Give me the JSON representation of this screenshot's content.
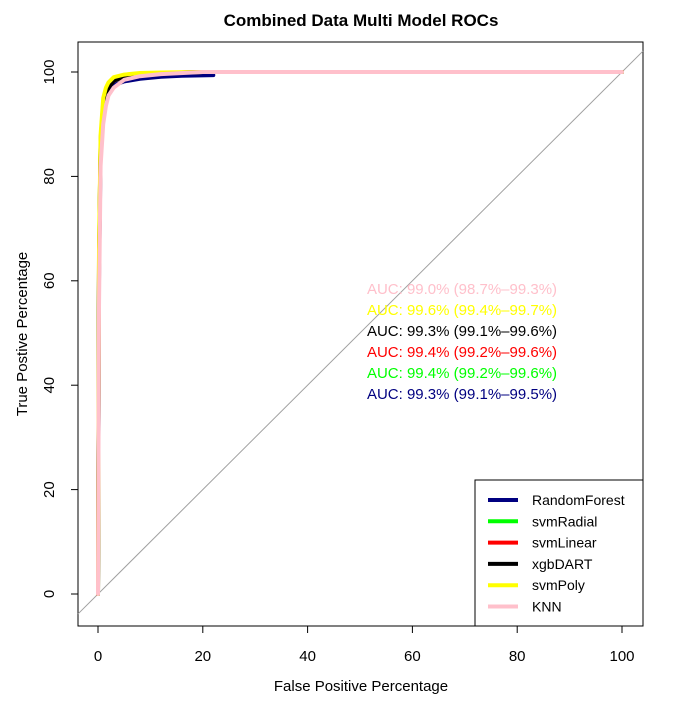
{
  "chart_data": {
    "type": "line",
    "title": "Combined Data Multi Model ROCs",
    "xlabel": "False Positive Percentage",
    "ylabel": "True Postive Percentage",
    "xlim": [
      0,
      100
    ],
    "ylim": [
      0,
      100
    ],
    "x_ticks": [
      "0",
      "20",
      "40",
      "60",
      "80",
      "100"
    ],
    "y_ticks": [
      "0",
      "20",
      "40",
      "60",
      "80",
      "100"
    ],
    "grid": false,
    "legend_position": "bottom-right",
    "reference_line": {
      "x": [
        0,
        100
      ],
      "y": [
        0,
        100
      ],
      "color": "#a0a0a0"
    },
    "series": [
      {
        "name": "RandomForest",
        "color": "#000080",
        "auc_label": "AUC: 99.3% (99.1%–99.5%)",
        "x": [
          0,
          0.2,
          0.5,
          1,
          1.5,
          2,
          3,
          5,
          8,
          12,
          16,
          22
        ],
        "y": [
          0,
          60,
          85,
          92,
          95,
          96.5,
          97.5,
          98.2,
          98.7,
          99.1,
          99.3,
          99.4
        ]
      },
      {
        "name": "svmRadial",
        "color": "#00ff00",
        "auc_label": "AUC: 99.4% (99.2%–99.6%)",
        "x": [
          0,
          0.2,
          0.5,
          1,
          1.5,
          2,
          3,
          5,
          8,
          12,
          20,
          100
        ],
        "y": [
          0,
          65,
          87,
          94,
          96.5,
          97.5,
          98.5,
          99.2,
          99.6,
          99.8,
          100,
          100
        ]
      },
      {
        "name": "svmLinear",
        "color": "#ff0000",
        "auc_label": "AUC: 99.4% (99.2%–99.6%)",
        "x": [
          0,
          0.2,
          0.5,
          1,
          1.5,
          2,
          3,
          5,
          8,
          12,
          20,
          100
        ],
        "y": [
          0,
          64,
          87,
          94,
          96.5,
          97.5,
          98.5,
          99.2,
          99.6,
          99.8,
          100,
          100
        ]
      },
      {
        "name": "xgbDART",
        "color": "#000000",
        "auc_label": "AUC: 99.3% (99.1%–99.6%)",
        "x": [
          0,
          0.2,
          0.5,
          1,
          1.5,
          2,
          3,
          5,
          8,
          12,
          20,
          100
        ],
        "y": [
          0,
          62,
          86,
          93,
          95.5,
          97,
          98.3,
          99.1,
          99.5,
          99.8,
          100,
          100
        ]
      },
      {
        "name": "svmPoly",
        "color": "#ffff00",
        "auc_label": "AUC: 99.6% (99.4%–99.7%)",
        "x": [
          0,
          0.2,
          0.5,
          1,
          1.5,
          2,
          3,
          5,
          8,
          12,
          20,
          100
        ],
        "y": [
          0,
          66,
          88,
          95,
          97,
          98,
          99,
          99.5,
          99.8,
          99.9,
          100,
          100
        ]
      },
      {
        "name": "KNN",
        "color": "#ffc0cb",
        "auc_label": "AUC: 99.0% (98.7%–99.3%)",
        "x": [
          0,
          0.2,
          0.5,
          1,
          1.5,
          2,
          3,
          5,
          8,
          12,
          20,
          100
        ],
        "y": [
          0,
          55,
          82,
          90,
          93.5,
          95.5,
          97,
          98.5,
          99.2,
          99.6,
          100,
          100
        ]
      }
    ]
  }
}
